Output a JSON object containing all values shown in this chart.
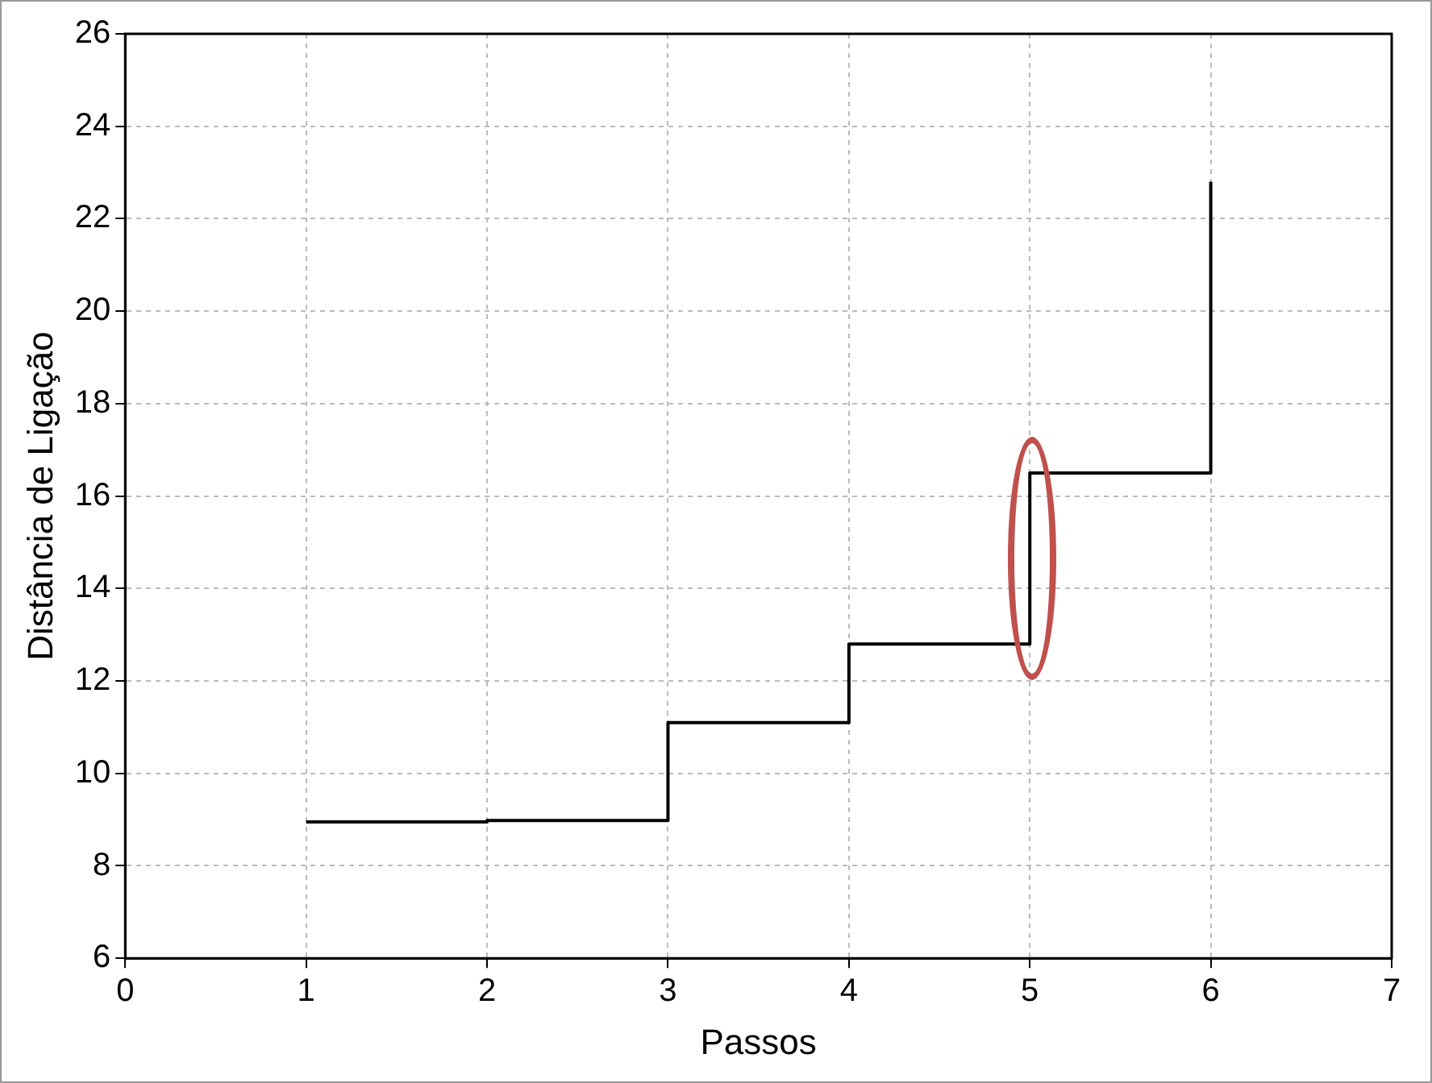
{
  "chart_data": {
    "type": "step",
    "xlabel": "Passos",
    "ylabel": "Distância de Ligação",
    "x": [
      1,
      2,
      3,
      4,
      5,
      6
    ],
    "series": [
      {
        "color": "#000000",
        "values": [
          8.95,
          8.98,
          11.1,
          12.8,
          16.5,
          22.8
        ]
      }
    ],
    "xlim": [
      0,
      7
    ],
    "xticks": [
      0,
      1,
      2,
      3,
      4,
      5,
      6,
      7
    ],
    "ylim": [
      6,
      26
    ],
    "yticks": [
      6,
      8,
      10,
      12,
      14,
      16,
      18,
      20,
      22,
      24,
      26
    ],
    "grid": true,
    "legend": false,
    "marker": "none",
    "line_style": "solid"
  }
}
